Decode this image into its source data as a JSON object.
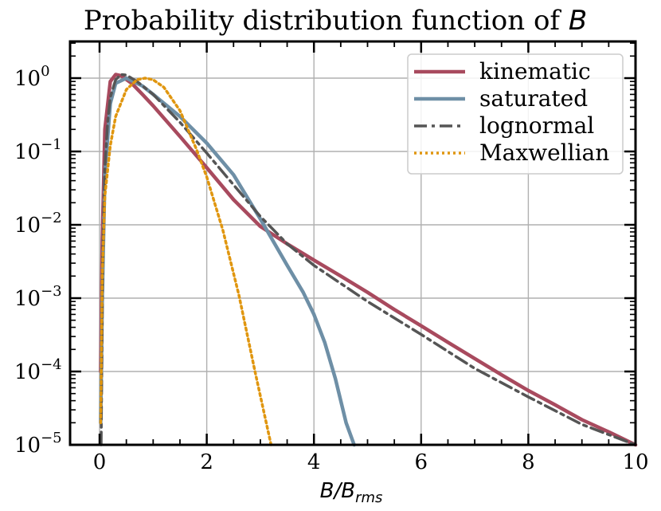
{
  "chart_data": {
    "type": "line",
    "title_main": "Probability distribution function of ",
    "title_var": "B",
    "xlabel_main": "B/B",
    "xlabel_sub": "rms",
    "xlim": [
      -0.55,
      10.0
    ],
    "ylim_log10": [
      -5,
      0.5
    ],
    "xticks": [
      0,
      2,
      4,
      6,
      8,
      10
    ],
    "xtick_labels": [
      "0",
      "2",
      "4",
      "6",
      "8",
      "10"
    ],
    "yticks_log10": [
      0,
      -1,
      -2,
      -3,
      -4,
      -5
    ],
    "ytick_base": "10",
    "ytick_exponents": [
      "0",
      "−1",
      "−2",
      "−3",
      "−4",
      "−5"
    ],
    "grid": true,
    "legend_position": "top-right",
    "series": [
      {
        "name": "kinematic",
        "style": "solid",
        "color": "#a84a5e",
        "x": [
          0.02,
          0.05,
          0.1,
          0.2,
          0.3,
          0.4,
          0.6,
          0.8,
          1.0,
          1.5,
          2.0,
          2.5,
          3.0,
          3.5,
          4.0,
          4.5,
          5.0,
          5.5,
          6.0,
          6.5,
          7.0,
          7.5,
          8.0,
          8.5,
          9.0,
          9.5,
          10.0
        ],
        "y": [
          0.0001,
          0.006,
          0.2,
          0.9,
          1.12,
          1.08,
          0.85,
          0.6,
          0.42,
          0.16,
          0.06,
          0.022,
          0.0095,
          0.0055,
          0.0033,
          0.002,
          0.0012,
          0.0007,
          0.00042,
          0.00025,
          0.00015,
          9e-05,
          5.5e-05,
          3.5e-05,
          2.2e-05,
          1.5e-05,
          1e-05
        ]
      },
      {
        "name": "saturated",
        "style": "solid",
        "color": "#6e8fa6",
        "x": [
          0.02,
          0.05,
          0.1,
          0.2,
          0.3,
          0.5,
          0.8,
          1.0,
          1.5,
          2.0,
          2.5,
          3.0,
          3.5,
          3.8,
          4.0,
          4.2,
          4.4,
          4.6,
          4.75
        ],
        "y": [
          2e-05,
          0.001,
          0.05,
          0.45,
          0.85,
          1.0,
          0.78,
          0.6,
          0.3,
          0.13,
          0.048,
          0.012,
          0.0028,
          0.0012,
          0.0006,
          0.00025,
          8e-05,
          2e-05,
          1e-05
        ]
      },
      {
        "name": "lognormal",
        "style": "dashdot",
        "color": "#555555",
        "x": [
          0.03,
          0.06,
          0.1,
          0.15,
          0.2,
          0.3,
          0.4,
          0.5,
          0.7,
          1.0,
          1.5,
          2.0,
          2.5,
          3.0,
          3.5,
          4.0,
          5.0,
          6.0,
          7.0,
          8.0,
          9.0,
          10.0
        ],
        "y": [
          1e-05,
          0.004,
          0.06,
          0.25,
          0.55,
          0.95,
          1.12,
          1.1,
          0.9,
          0.6,
          0.25,
          0.095,
          0.035,
          0.013,
          0.0055,
          0.0028,
          0.0009,
          0.00032,
          0.00011,
          4.5e-05,
          1.9e-05,
          9e-06
        ]
      },
      {
        "name": "Maxwellian",
        "style": "dotted",
        "color": "#e0960f",
        "x": [
          0.02,
          0.05,
          0.1,
          0.2,
          0.3,
          0.5,
          0.7,
          0.85,
          1.0,
          1.2,
          1.5,
          1.8,
          2.0,
          2.3,
          2.6,
          2.9,
          3.2
        ],
        "y": [
          2e-05,
          0.002,
          0.025,
          0.12,
          0.3,
          0.7,
          0.95,
          1.0,
          0.95,
          0.75,
          0.36,
          0.11,
          0.045,
          0.0085,
          0.0011,
          0.0001,
          1e-05
        ]
      }
    ]
  }
}
